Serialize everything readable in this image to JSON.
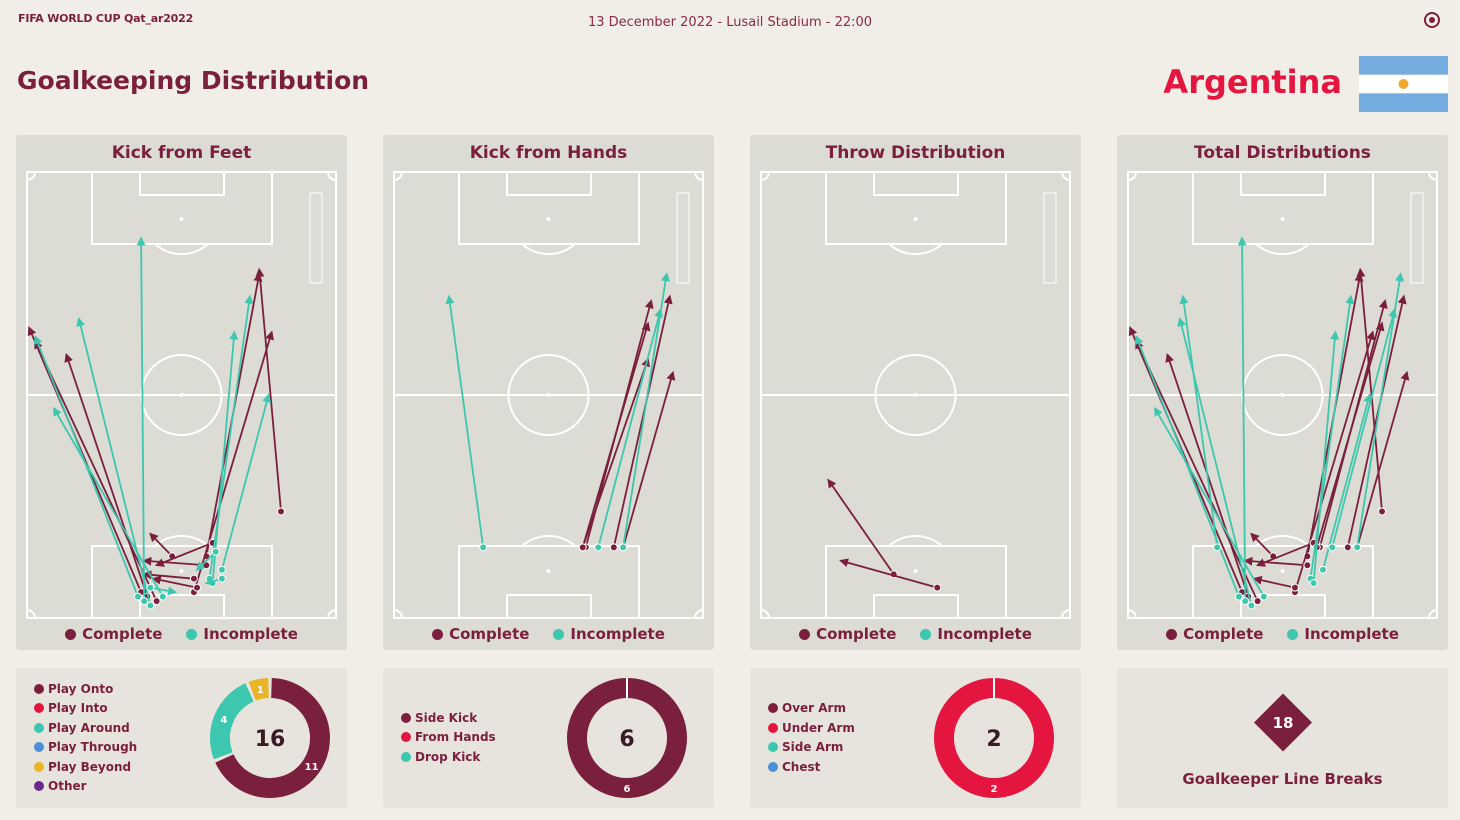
{
  "header": {
    "brand": "FIFA WORLD CUP Qat_ar2022",
    "match_info": "13 December 2022 - Lusail Stadium - 22:00",
    "page_title": "Goalkeeping Distribution",
    "team": "Argentina"
  },
  "colors": {
    "complete": "#7a1f3d",
    "incomplete": "#3cc7ae",
    "accent_red": "#e4163f",
    "play_through": "#4c8fd6",
    "play_beyond": "#e9b526",
    "other": "#6a2a8c",
    "flag_blue": "#74acdf",
    "flag_sun": "#f0a930"
  },
  "legend": {
    "complete": "Complete",
    "incomplete": "Incomplete"
  },
  "chart_data": [
    {
      "type": "pitch-map",
      "title": "Kick from Feet",
      "passes": [
        {
          "from": [
            0.37,
            0.94
          ],
          "to": [
            0.01,
            0.35
          ],
          "status": "complete"
        },
        {
          "from": [
            0.42,
            0.96
          ],
          "to": [
            0.03,
            0.38
          ],
          "status": "complete"
        },
        {
          "from": [
            0.39,
            0.95
          ],
          "to": [
            0.13,
            0.41
          ],
          "status": "complete"
        },
        {
          "from": [
            0.58,
            0.86
          ],
          "to": [
            0.75,
            0.23
          ],
          "status": "complete"
        },
        {
          "from": [
            0.54,
            0.94
          ],
          "to": [
            0.79,
            0.36
          ],
          "status": "complete"
        },
        {
          "from": [
            0.82,
            0.76
          ],
          "to": [
            0.75,
            0.22
          ],
          "status": "complete"
        },
        {
          "from": [
            0.47,
            0.86
          ],
          "to": [
            0.4,
            0.81
          ],
          "status": "complete"
        },
        {
          "from": [
            0.6,
            0.83
          ],
          "to": [
            0.42,
            0.88
          ],
          "status": "complete"
        },
        {
          "from": [
            0.58,
            0.88
          ],
          "to": [
            0.38,
            0.87
          ],
          "status": "complete"
        },
        {
          "from": [
            0.54,
            0.91
          ],
          "to": [
            0.38,
            0.9
          ],
          "status": "complete"
        },
        {
          "from": [
            0.55,
            0.93
          ],
          "to": [
            0.41,
            0.91
          ],
          "status": "complete"
        },
        {
          "from": [
            0.38,
            0.96
          ],
          "to": [
            0.37,
            0.15
          ],
          "status": "incomplete"
        },
        {
          "from": [
            0.4,
            0.97
          ],
          "to": [
            0.17,
            0.33
          ],
          "status": "incomplete"
        },
        {
          "from": [
            0.36,
            0.95
          ],
          "to": [
            0.03,
            0.37
          ],
          "status": "incomplete"
        },
        {
          "from": [
            0.44,
            0.95
          ],
          "to": [
            0.09,
            0.53
          ],
          "status": "incomplete"
        },
        {
          "from": [
            0.59,
            0.91
          ],
          "to": [
            0.72,
            0.28
          ],
          "status": "incomplete"
        },
        {
          "from": [
            0.6,
            0.92
          ],
          "to": [
            0.67,
            0.36
          ],
          "status": "incomplete"
        },
        {
          "from": [
            0.63,
            0.89
          ],
          "to": [
            0.78,
            0.5
          ],
          "status": "incomplete"
        },
        {
          "from": [
            0.61,
            0.85
          ],
          "to": [
            0.55,
            0.89
          ],
          "status": "incomplete"
        },
        {
          "from": [
            0.63,
            0.91
          ],
          "to": [
            0.58,
            0.92
          ],
          "status": "incomplete"
        },
        {
          "from": [
            0.4,
            0.93
          ],
          "to": [
            0.48,
            0.94
          ],
          "status": "incomplete"
        }
      ],
      "summary": {
        "total": 16,
        "categories": [
          "Play Onto",
          "Play Into",
          "Play Around",
          "Play Through",
          "Play Beyond",
          "Other"
        ],
        "category_colors": [
          "#7a1f3d",
          "#e4163f",
          "#3cc7ae",
          "#4c8fd6",
          "#e9b526",
          "#6a2a8c"
        ],
        "values": [
          11,
          0,
          4,
          0,
          1,
          0
        ]
      }
    },
    {
      "type": "pitch-map",
      "title": "Kick from Hands",
      "passes": [
        {
          "from": [
            0.62,
            0.84
          ],
          "to": [
            0.83,
            0.29
          ],
          "status": "complete"
        },
        {
          "from": [
            0.71,
            0.84
          ],
          "to": [
            0.89,
            0.28
          ],
          "status": "complete"
        },
        {
          "from": [
            0.74,
            0.84
          ],
          "to": [
            0.9,
            0.45
          ],
          "status": "complete"
        },
        {
          "from": [
            0.61,
            0.84
          ],
          "to": [
            0.82,
            0.34
          ],
          "status": "complete"
        },
        {
          "from": [
            0.61,
            0.84
          ],
          "to": [
            0.82,
            0.42
          ],
          "status": "complete"
        },
        {
          "from": [
            0.29,
            0.84
          ],
          "to": [
            0.18,
            0.28
          ],
          "status": "incomplete"
        },
        {
          "from": [
            0.74,
            0.84
          ],
          "to": [
            0.88,
            0.23
          ],
          "status": "incomplete"
        },
        {
          "from": [
            0.66,
            0.84
          ],
          "to": [
            0.86,
            0.31
          ],
          "status": "incomplete"
        }
      ],
      "summary": {
        "total": 6,
        "categories": [
          "Side Kick",
          "From Hands",
          "Drop Kick"
        ],
        "category_colors": [
          "#7a1f3d",
          "#e4163f",
          "#3cc7ae"
        ],
        "values": [
          6,
          0,
          0
        ]
      }
    },
    {
      "type": "pitch-map",
      "title": "Throw Distribution",
      "passes": [
        {
          "from": [
            0.43,
            0.9
          ],
          "to": [
            0.22,
            0.69
          ],
          "status": "complete"
        },
        {
          "from": [
            0.57,
            0.93
          ],
          "to": [
            0.26,
            0.87
          ],
          "status": "complete"
        }
      ],
      "summary": {
        "total": 2,
        "categories": [
          "Over Arm",
          "Under Arm",
          "Side Arm",
          "Chest"
        ],
        "category_colors": [
          "#7a1f3d",
          "#e4163f",
          "#3cc7ae",
          "#4c8fd6"
        ],
        "values": [
          0,
          2,
          0,
          0
        ]
      }
    },
    {
      "type": "pitch-map",
      "title": "Total Distributions",
      "passes": [
        {
          "from": [
            0.37,
            0.94
          ],
          "to": [
            0.01,
            0.35
          ],
          "status": "complete"
        },
        {
          "from": [
            0.42,
            0.96
          ],
          "to": [
            0.03,
            0.38
          ],
          "status": "complete"
        },
        {
          "from": [
            0.39,
            0.95
          ],
          "to": [
            0.13,
            0.41
          ],
          "status": "complete"
        },
        {
          "from": [
            0.58,
            0.86
          ],
          "to": [
            0.75,
            0.23
          ],
          "status": "complete"
        },
        {
          "from": [
            0.54,
            0.94
          ],
          "to": [
            0.79,
            0.36
          ],
          "status": "complete"
        },
        {
          "from": [
            0.82,
            0.76
          ],
          "to": [
            0.75,
            0.22
          ],
          "status": "complete"
        },
        {
          "from": [
            0.47,
            0.86
          ],
          "to": [
            0.4,
            0.81
          ],
          "status": "complete"
        },
        {
          "from": [
            0.6,
            0.83
          ],
          "to": [
            0.42,
            0.88
          ],
          "status": "complete"
        },
        {
          "from": [
            0.58,
            0.88
          ],
          "to": [
            0.38,
            0.87
          ],
          "status": "complete"
        },
        {
          "from": [
            0.54,
            0.93
          ],
          "to": [
            0.41,
            0.91
          ],
          "status": "complete"
        },
        {
          "from": [
            0.62,
            0.84
          ],
          "to": [
            0.83,
            0.29
          ],
          "status": "complete"
        },
        {
          "from": [
            0.71,
            0.84
          ],
          "to": [
            0.89,
            0.28
          ],
          "status": "complete"
        },
        {
          "from": [
            0.74,
            0.84
          ],
          "to": [
            0.9,
            0.45
          ],
          "status": "complete"
        },
        {
          "from": [
            0.61,
            0.84
          ],
          "to": [
            0.82,
            0.34
          ],
          "status": "complete"
        },
        {
          "from": [
            0.38,
            0.96
          ],
          "to": [
            0.37,
            0.15
          ],
          "status": "incomplete"
        },
        {
          "from": [
            0.4,
            0.97
          ],
          "to": [
            0.17,
            0.33
          ],
          "status": "incomplete"
        },
        {
          "from": [
            0.36,
            0.95
          ],
          "to": [
            0.03,
            0.37
          ],
          "status": "incomplete"
        },
        {
          "from": [
            0.44,
            0.95
          ],
          "to": [
            0.09,
            0.53
          ],
          "status": "incomplete"
        },
        {
          "from": [
            0.59,
            0.91
          ],
          "to": [
            0.72,
            0.28
          ],
          "status": "incomplete"
        },
        {
          "from": [
            0.6,
            0.92
          ],
          "to": [
            0.67,
            0.36
          ],
          "status": "incomplete"
        },
        {
          "from": [
            0.63,
            0.89
          ],
          "to": [
            0.78,
            0.5
          ],
          "status": "incomplete"
        },
        {
          "from": [
            0.29,
            0.84
          ],
          "to": [
            0.18,
            0.28
          ],
          "status": "incomplete"
        },
        {
          "from": [
            0.74,
            0.84
          ],
          "to": [
            0.88,
            0.23
          ],
          "status": "incomplete"
        },
        {
          "from": [
            0.66,
            0.84
          ],
          "to": [
            0.86,
            0.31
          ],
          "status": "incomplete"
        }
      ],
      "summary": {
        "value": 18,
        "label": "Goalkeeper Line Breaks"
      }
    }
  ]
}
